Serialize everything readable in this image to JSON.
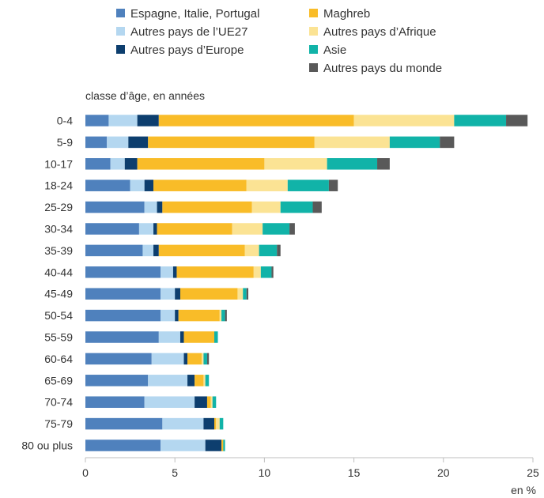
{
  "chart_data": {
    "type": "bar",
    "orientation": "horizontal",
    "stacked": true,
    "ylabel": "classe d’âge, en années",
    "xlabel": "en %",
    "xlim": [
      0,
      25
    ],
    "xticks": [
      0,
      5,
      10,
      15,
      20,
      25
    ],
    "grid": false,
    "legend_position": "top",
    "categories": [
      "0-4",
      "5-9",
      "10-17",
      "18-24",
      "25-29",
      "30-34",
      "35-39",
      "40-44",
      "45-49",
      "50-54",
      "55-59",
      "60-64",
      "65-69",
      "70-74",
      "75-79",
      "80 ou plus"
    ],
    "series": [
      {
        "name": "Espagne, Italie, Portugal",
        "color": "#4f81bd",
        "values": [
          1.3,
          1.2,
          1.4,
          2.5,
          3.3,
          3.0,
          3.2,
          4.2,
          4.2,
          4.2,
          4.1,
          3.7,
          3.5,
          3.3,
          4.3,
          4.2
        ]
      },
      {
        "name": "Autres pays de l’UE27",
        "color": "#b4d7f0",
        "values": [
          1.6,
          1.2,
          0.8,
          0.8,
          0.7,
          0.8,
          0.6,
          0.7,
          0.8,
          0.8,
          1.2,
          1.8,
          2.2,
          2.8,
          2.3,
          2.5
        ]
      },
      {
        "name": "Autres pays d’Europe",
        "color": "#0d3e6e",
        "values": [
          1.2,
          1.1,
          0.7,
          0.5,
          0.3,
          0.2,
          0.3,
          0.2,
          0.3,
          0.2,
          0.2,
          0.2,
          0.4,
          0.7,
          0.6,
          0.9
        ]
      },
      {
        "name": "Maghreb",
        "color": "#f9bc28",
        "values": [
          10.9,
          9.3,
          7.1,
          5.2,
          5.0,
          4.2,
          4.8,
          4.3,
          3.2,
          2.3,
          1.7,
          0.8,
          0.5,
          0.2,
          0.1,
          0.1
        ]
      },
      {
        "name": "Autres pays d’Afrique",
        "color": "#fbe394",
        "values": [
          5.6,
          4.2,
          3.5,
          2.3,
          1.6,
          1.7,
          0.8,
          0.4,
          0.3,
          0.1,
          0.0,
          0.1,
          0.1,
          0.1,
          0.2,
          0.0
        ]
      },
      {
        "name": "Asie",
        "color": "#11b3a8",
        "values": [
          2.9,
          2.8,
          2.8,
          2.3,
          1.8,
          1.5,
          1.0,
          0.6,
          0.2,
          0.2,
          0.2,
          0.2,
          0.2,
          0.2,
          0.2,
          0.1
        ]
      },
      {
        "name": "Autres pays du monde",
        "color": "#595959",
        "values": [
          1.2,
          0.8,
          0.7,
          0.5,
          0.5,
          0.3,
          0.2,
          0.1,
          0.1,
          0.1,
          0.0,
          0.1,
          0.0,
          0.0,
          0.0,
          0.0
        ]
      }
    ]
  }
}
